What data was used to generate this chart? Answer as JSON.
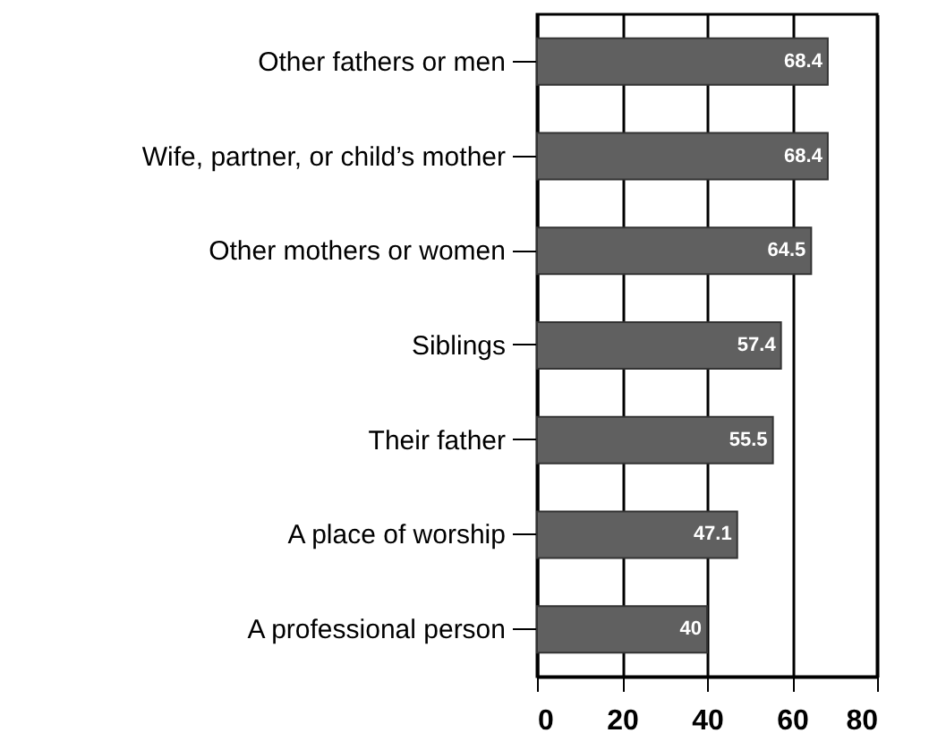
{
  "chart_data": {
    "type": "bar",
    "orientation": "horizontal",
    "categories": [
      "Other fathers or men",
      "Wife, partner, or child’s mother",
      "Other mothers or women",
      "Siblings",
      "Their father",
      "A place of worship",
      "A professional person"
    ],
    "values": [
      68.4,
      68.4,
      64.5,
      57.4,
      55.5,
      47.1,
      40
    ],
    "color": "#606060",
    "xlim": [
      0,
      80
    ],
    "xticks": [
      0,
      20,
      40,
      60,
      80
    ],
    "grid": "x",
    "data_labels": true
  }
}
